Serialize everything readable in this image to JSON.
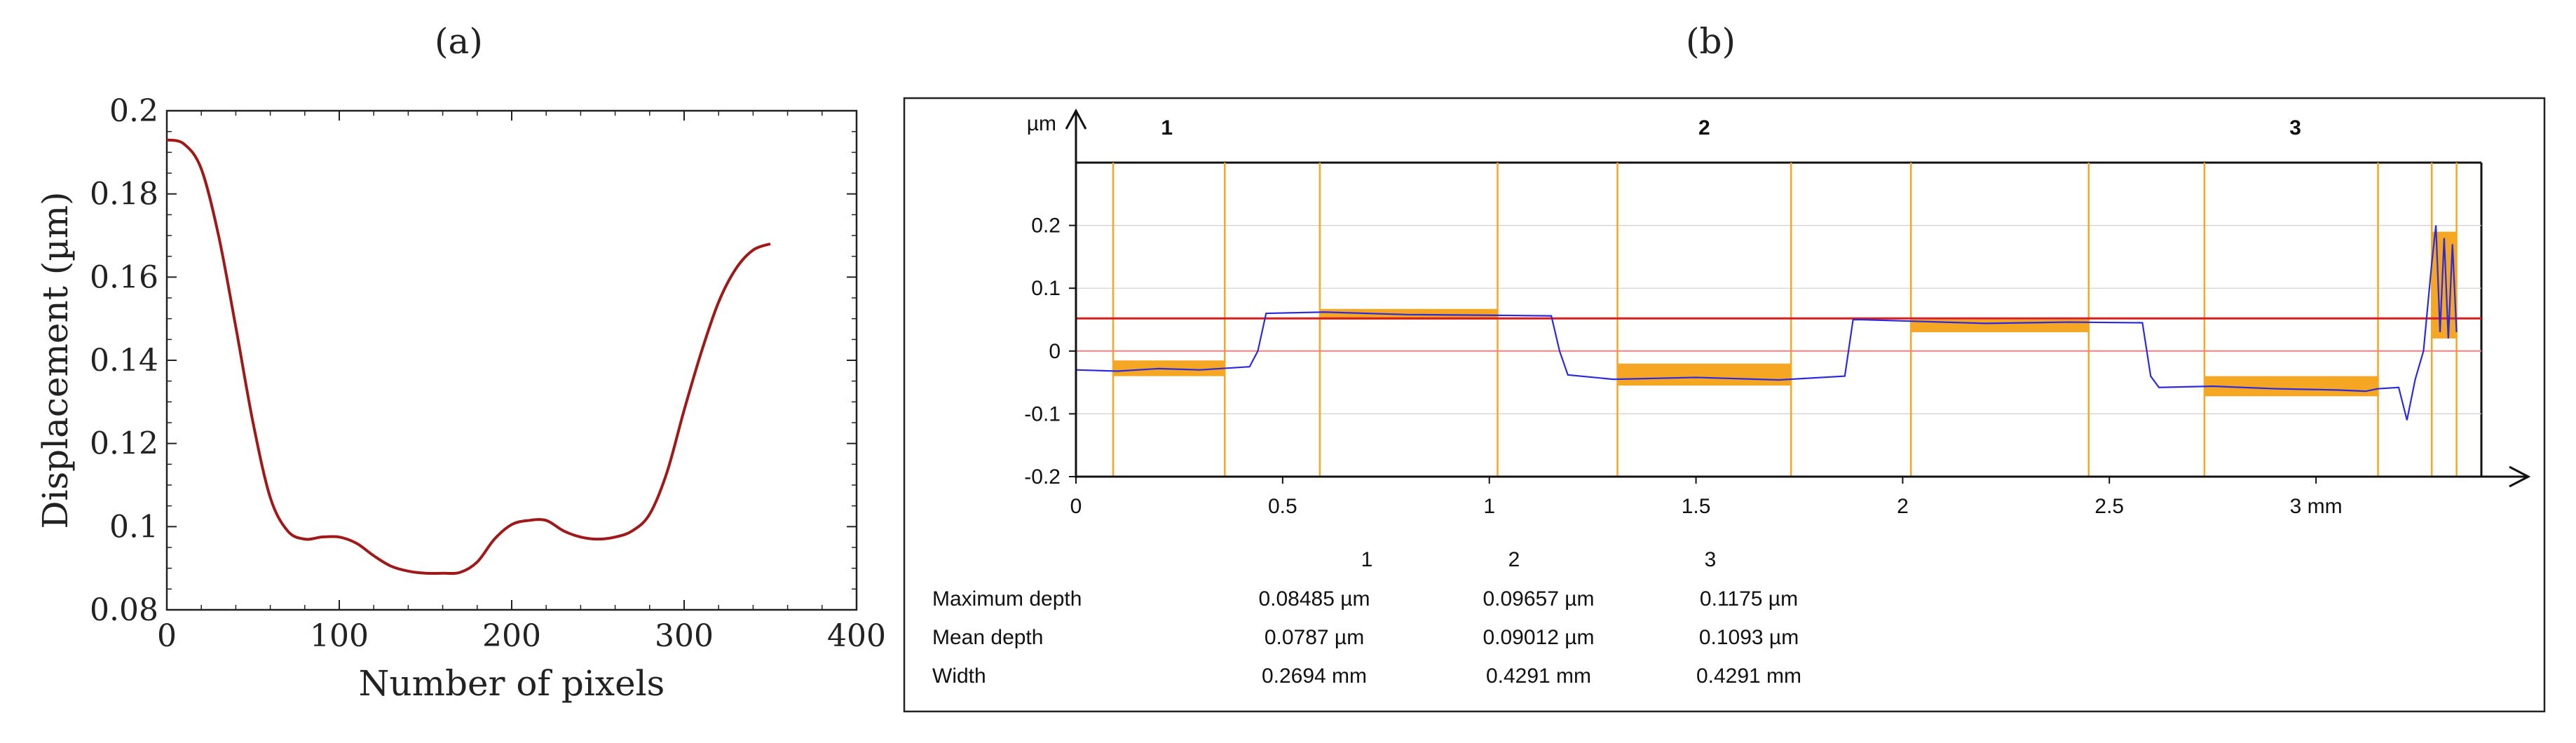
{
  "panels": {
    "a_label": "(a)",
    "b_label": "(b)"
  },
  "chart_data": [
    {
      "type": "line",
      "title": "",
      "xlabel": "Number of pixels",
      "ylabel": "Displacement (µm)",
      "xlim": [
        0,
        400
      ],
      "ylim": [
        0.08,
        0.2
      ],
      "xticks": [
        0,
        100,
        200,
        300,
        400
      ],
      "xtick_labels": [
        "0",
        "100",
        "200",
        "300",
        "400"
      ],
      "yticks": [
        0.08,
        0.1,
        0.12,
        0.14,
        0.16,
        0.18,
        0.2
      ],
      "ytick_labels": [
        "0.08",
        "0.1",
        "0.12",
        "0.14",
        "0.16",
        "0.18",
        "0.2"
      ],
      "line_color": "#a01818",
      "series": [
        {
          "name": "displacement",
          "x": [
            0,
            10,
            20,
            30,
            40,
            50,
            60,
            70,
            80,
            90,
            100,
            110,
            120,
            130,
            140,
            150,
            160,
            170,
            180,
            190,
            200,
            210,
            220,
            230,
            240,
            250,
            260,
            270,
            280,
            290,
            300,
            310,
            320,
            330,
            340,
            350
          ],
          "y": [
            0.193,
            0.192,
            0.186,
            0.17,
            0.148,
            0.125,
            0.107,
            0.099,
            0.097,
            0.0975,
            0.0975,
            0.096,
            0.093,
            0.0905,
            0.0893,
            0.0888,
            0.0888,
            0.089,
            0.0915,
            0.097,
            0.1005,
            0.1015,
            0.1015,
            0.099,
            0.0975,
            0.097,
            0.0975,
            0.099,
            0.103,
            0.113,
            0.128,
            0.142,
            0.154,
            0.162,
            0.1665,
            0.168
          ]
        }
      ]
    },
    {
      "type": "line",
      "title": "",
      "xlabel": "mm",
      "ylabel": "µm",
      "xlim": [
        0,
        3.4
      ],
      "ylim": [
        -0.2,
        0.3
      ],
      "xticks": [
        0,
        0.5,
        1,
        1.5,
        2,
        2.5,
        3
      ],
      "xtick_labels": [
        "0",
        "0.5",
        "1",
        "1.5",
        "2",
        "2.5",
        "3 mm"
      ],
      "yticks": [
        -0.2,
        -0.1,
        0,
        0.1,
        0.2
      ],
      "ytick_labels": [
        "-0.2",
        "-0.1",
        "0",
        "0.1",
        "0.2"
      ],
      "axis_unit_y": "µm",
      "region_labels": [
        "1",
        "2",
        "3"
      ],
      "region_label_x": [
        0.22,
        1.52,
        2.95
      ],
      "orange_vlines": [
        0.09,
        0.36,
        0.59,
        1.02,
        1.31,
        1.73,
        2.02,
        2.45,
        2.73,
        3.15,
        3.28,
        3.34
      ],
      "orange_boxes": [
        {
          "x0": 0.09,
          "x1": 0.36,
          "y0": -0.04,
          "y1": -0.015
        },
        {
          "x0": 0.59,
          "x1": 1.02,
          "y0": 0.05,
          "y1": 0.067
        },
        {
          "x0": 1.31,
          "x1": 1.73,
          "y0": -0.055,
          "y1": -0.02
        },
        {
          "x0": 2.02,
          "x1": 2.45,
          "y0": 0.03,
          "y1": 0.05
        },
        {
          "x0": 2.73,
          "x1": 3.15,
          "y0": -0.072,
          "y1": -0.04
        },
        {
          "x0": 3.28,
          "x1": 3.34,
          "y0": 0.02,
          "y1": 0.19
        }
      ],
      "red_hlines": [
        0.052,
        0.0
      ],
      "orange_color": "#f5a623",
      "profile_color": "#2a2ae0",
      "series": [
        {
          "name": "profile",
          "x": [
            0,
            0.1,
            0.2,
            0.3,
            0.42,
            0.44,
            0.46,
            0.6,
            0.8,
            1.0,
            1.15,
            1.17,
            1.19,
            1.3,
            1.5,
            1.7,
            1.86,
            1.88,
            1.9,
            2.0,
            2.2,
            2.4,
            2.58,
            2.6,
            2.62,
            2.75,
            2.9,
            3.05,
            3.12,
            3.15,
            3.2,
            3.22,
            3.24,
            3.26,
            3.28,
            3.29,
            3.3,
            3.31,
            3.32,
            3.33,
            3.34
          ],
          "y": [
            -0.03,
            -0.032,
            -0.028,
            -0.03,
            -0.025,
            0.0,
            0.06,
            0.062,
            0.058,
            0.057,
            0.056,
            0.0,
            -0.038,
            -0.045,
            -0.042,
            -0.046,
            -0.04,
            0.05,
            0.05,
            0.048,
            0.044,
            0.046,
            0.045,
            -0.04,
            -0.058,
            -0.056,
            -0.06,
            -0.062,
            -0.064,
            -0.06,
            -0.058,
            -0.11,
            -0.045,
            0.0,
            0.14,
            0.2,
            0.03,
            0.18,
            0.02,
            0.17,
            0.03
          ]
        }
      ]
    }
  ],
  "measurement_table": {
    "columns": [
      "1",
      "2",
      "3"
    ],
    "rows": [
      {
        "label": "Maximum depth",
        "values": [
          "0.08485 µm",
          "0.09657 µm",
          "0.1175 µm"
        ]
      },
      {
        "label": "Mean depth",
        "values": [
          "0.0787 µm",
          "0.09012 µm",
          "0.1093 µm"
        ]
      },
      {
        "label": "Width",
        "values": [
          "0.2694 mm",
          "0.4291 mm",
          "0.4291 mm"
        ]
      }
    ]
  }
}
